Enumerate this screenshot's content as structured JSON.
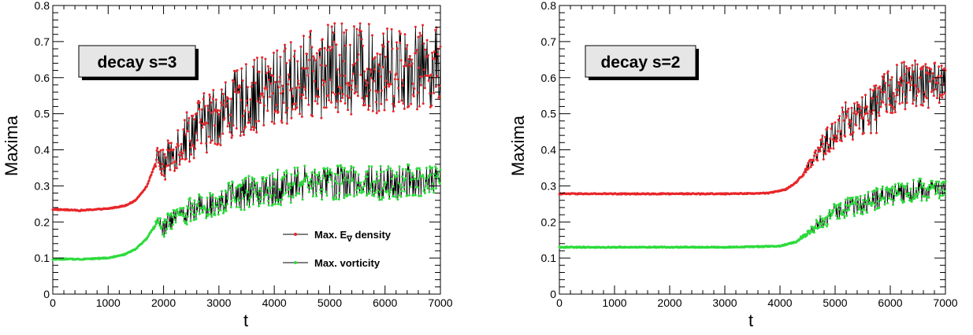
{
  "chart_data": [
    {
      "type": "line",
      "panel_label": "decay s=3",
      "xlabel": "t",
      "ylabel": "Maxima",
      "xlim": [
        0,
        7000
      ],
      "ylim": [
        0,
        0.8
      ],
      "xticks": [
        0,
        1000,
        2000,
        3000,
        4000,
        5000,
        6000,
        7000
      ],
      "yticks": [
        0,
        0.1,
        0.2,
        0.3,
        0.4,
        0.5,
        0.6,
        0.7,
        0.8
      ],
      "ytick_labels": [
        "0",
        "0.1",
        "0.2",
        "0.3",
        "0.4",
        "0.5",
        "0.6",
        "0.7",
        "0.8"
      ],
      "grid": false,
      "legend": {
        "placement": "bottom-right",
        "entries": [
          {
            "label": "Max. E",
            "subscript": "∇",
            "suffix": " density",
            "color": "#e8262a"
          },
          {
            "label": "Max. vorticity",
            "suffix": "",
            "color": "#2ddb3c"
          }
        ]
      },
      "series": [
        {
          "color": "#e8262a",
          "x": [
            0,
            500,
            1000,
            1300,
            1500,
            1700,
            1800,
            1900,
            2000,
            2100,
            2300,
            2500,
            3000,
            3500,
            4000,
            4500,
            5000,
            5500,
            6000,
            6500,
            7000
          ],
          "y": [
            0.235,
            0.232,
            0.237,
            0.245,
            0.26,
            0.3,
            0.34,
            0.385,
            0.35,
            0.38,
            0.42,
            0.45,
            0.5,
            0.54,
            0.57,
            0.6,
            0.62,
            0.63,
            0.62,
            0.63,
            0.63
          ],
          "noise": [
            0,
            0,
            0,
            0,
            0,
            0,
            0,
            0.03,
            0.05,
            0.05,
            0.07,
            0.08,
            0.09,
            0.1,
            0.11,
            0.12,
            0.13,
            0.13,
            0.12,
            0.12,
            0.11
          ]
        },
        {
          "color": "#2ddb3c",
          "x": [
            0,
            500,
            1000,
            1300,
            1500,
            1700,
            1800,
            1900,
            2000,
            2100,
            2500,
            3000,
            3500,
            4000,
            4500,
            5000,
            5500,
            6000,
            6500,
            7000
          ],
          "y": [
            0.097,
            0.097,
            0.1,
            0.11,
            0.125,
            0.155,
            0.18,
            0.2,
            0.18,
            0.2,
            0.235,
            0.26,
            0.28,
            0.295,
            0.305,
            0.31,
            0.31,
            0.31,
            0.31,
            0.31
          ],
          "noise": [
            0,
            0,
            0,
            0,
            0,
            0,
            0,
            0.015,
            0.025,
            0.03,
            0.035,
            0.04,
            0.045,
            0.05,
            0.05,
            0.05,
            0.05,
            0.05,
            0.05,
            0.045
          ]
        }
      ]
    },
    {
      "type": "line",
      "panel_label": "decay s=2",
      "xlabel": "t",
      "ylabel": "Maxima",
      "xlim": [
        0,
        7000
      ],
      "ylim": [
        0,
        0.8
      ],
      "xticks": [
        0,
        1000,
        2000,
        3000,
        4000,
        5000,
        6000,
        7000
      ],
      "yticks": [
        0,
        0.1,
        0.2,
        0.3,
        0.4,
        0.5,
        0.6,
        0.7,
        0.8
      ],
      "ytick_labels": [
        "0",
        "0.1",
        "0.2",
        "0.3",
        "0.4",
        "0.5",
        "0.6",
        "0.7",
        "0.8"
      ],
      "grid": false,
      "series": [
        {
          "color": "#e8262a",
          "x": [
            0,
            1000,
            2000,
            3000,
            3800,
            4100,
            4300,
            4500,
            4700,
            4800,
            5000,
            5200,
            5500,
            5800,
            6000,
            6500,
            7000
          ],
          "y": [
            0.278,
            0.278,
            0.278,
            0.278,
            0.28,
            0.29,
            0.31,
            0.35,
            0.39,
            0.41,
            0.45,
            0.48,
            0.49,
            0.52,
            0.57,
            0.58,
            0.59
          ],
          "noise": [
            0,
            0,
            0,
            0,
            0,
            0,
            0,
            0.01,
            0.03,
            0.04,
            0.05,
            0.06,
            0.06,
            0.07,
            0.07,
            0.07,
            0.06
          ]
        },
        {
          "color": "#2ddb3c",
          "x": [
            0,
            1000,
            2000,
            3000,
            4000,
            4300,
            4500,
            4700,
            4800,
            5000,
            5500,
            6000,
            6500,
            7000
          ],
          "y": [
            0.13,
            0.13,
            0.13,
            0.13,
            0.133,
            0.145,
            0.17,
            0.195,
            0.2,
            0.23,
            0.25,
            0.275,
            0.29,
            0.29
          ],
          "noise": [
            0,
            0,
            0,
            0,
            0,
            0,
            0.01,
            0.02,
            0.02,
            0.025,
            0.03,
            0.03,
            0.03,
            0.03
          ]
        }
      ]
    }
  ]
}
